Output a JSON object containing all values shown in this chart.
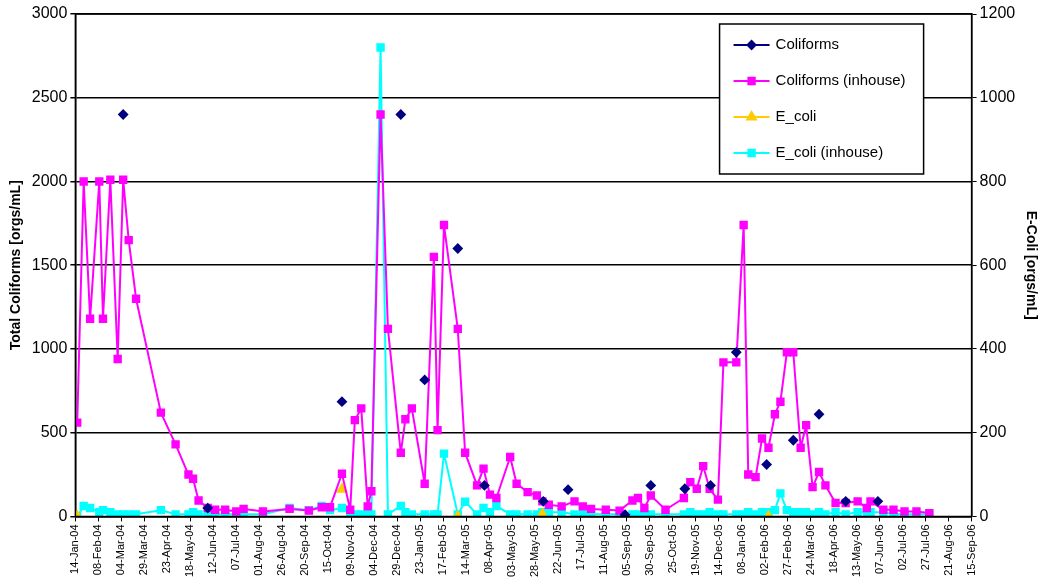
{
  "chart_data": {
    "type": "line",
    "ylabel": "Total Coliforms [orgs/mL]",
    "y2label": "E-Coli [orgs/mL]",
    "xlim": [
      "2004-01-14",
      "2006-09-15"
    ],
    "xticks": [
      {
        "value": "2004-01-14",
        "label": "14-Jan-04"
      },
      {
        "value": "2004-02-08",
        "label": "08-Feb-04"
      },
      {
        "value": "2004-03-04",
        "label": "04-Mar-04"
      },
      {
        "value": "2004-03-29",
        "label": "29-Mar-04"
      },
      {
        "value": "2004-04-23",
        "label": "23-Apr-04"
      },
      {
        "value": "2004-05-18",
        "label": "18-May-04"
      },
      {
        "value": "2004-06-12",
        "label": "12-Jun-04"
      },
      {
        "value": "2004-07-07",
        "label": "07-Jul-04"
      },
      {
        "value": "2004-08-01",
        "label": "01-Aug-04"
      },
      {
        "value": "2004-08-26",
        "label": "26-Aug-04"
      },
      {
        "value": "2004-09-20",
        "label": "20-Sep-04"
      },
      {
        "value": "2004-10-15",
        "label": "15-Oct-04"
      },
      {
        "value": "2004-11-09",
        "label": "09-Nov-04"
      },
      {
        "value": "2004-12-04",
        "label": "04-Dec-04"
      },
      {
        "value": "2004-12-29",
        "label": "29-Dec-04"
      },
      {
        "value": "2005-01-23",
        "label": "23-Jan-05"
      },
      {
        "value": "2005-02-17",
        "label": "17-Feb-05"
      },
      {
        "value": "2005-03-14",
        "label": "14-Mar-05"
      },
      {
        "value": "2005-04-08",
        "label": "08-Apr-05"
      },
      {
        "value": "2005-05-03",
        "label": "03-May-05"
      },
      {
        "value": "2005-05-28",
        "label": "28-May-05"
      },
      {
        "value": "2005-06-22",
        "label": "22-Jun-05"
      },
      {
        "value": "2005-07-17",
        "label": "17-Jul-05"
      },
      {
        "value": "2005-08-11",
        "label": "11-Aug-05"
      },
      {
        "value": "2005-09-05",
        "label": "05-Sep-05"
      },
      {
        "value": "2005-09-30",
        "label": "30-Sep-05"
      },
      {
        "value": "2005-10-25",
        "label": "25-Oct-05"
      },
      {
        "value": "2005-11-19",
        "label": "19-Nov-05"
      },
      {
        "value": "2005-12-14",
        "label": "14-Dec-05"
      },
      {
        "value": "2006-01-08",
        "label": "08-Jan-06"
      },
      {
        "value": "2006-02-02",
        "label": "02-Feb-06"
      },
      {
        "value": "2006-02-27",
        "label": "27-Feb-06"
      },
      {
        "value": "2006-03-24",
        "label": "24-Mar-06"
      },
      {
        "value": "2006-04-18",
        "label": "18-Apr-06"
      },
      {
        "value": "2006-05-13",
        "label": "13-May-06"
      },
      {
        "value": "2006-06-07",
        "label": "07-Jun-06"
      },
      {
        "value": "2006-07-02",
        "label": "02-Jul-06"
      },
      {
        "value": "2006-07-27",
        "label": "27-Jul-06"
      },
      {
        "value": "2006-08-21",
        "label": "21-Aug-06"
      },
      {
        "value": "2006-09-15",
        "label": "15-Sep-06"
      }
    ],
    "ylim": [
      0,
      3000
    ],
    "yticks": [
      0,
      500,
      1000,
      1500,
      2000,
      2500,
      3000
    ],
    "y2lim": [
      0,
      1200
    ],
    "y2ticks": [
      0,
      200,
      400,
      600,
      800,
      1000,
      1200
    ],
    "grid": "y",
    "legend": "top right",
    "series": [
      {
        "name": "Coliforms",
        "type": "scatter",
        "marker": "diamond",
        "color": "#000080",
        "x": [
          "2004-03-06",
          "2004-06-06",
          "2004-10-30",
          "2005-01-02",
          "2005-01-28",
          "2005-03-05",
          "2005-04-03",
          "2005-06-06",
          "2005-07-03",
          "2005-09-03",
          "2005-10-01",
          "2005-11-07",
          "2005-12-05",
          "2006-01-02",
          "2006-02-04",
          "2006-03-05",
          "2006-04-02",
          "2006-05-01",
          "2006-06-05"
        ],
        "values": [
          2400,
          50,
          685,
          2400,
          815,
          1600,
          185,
          90,
          160,
          10,
          185,
          165,
          185,
          980,
          310,
          455,
          610,
          90,
          90
        ]
      },
      {
        "name": "Coliforms (inhouse)",
        "marker": "square",
        "color": "#ff00ff",
        "x": [
          "2004-01-16",
          "2004-01-23",
          "2004-01-30",
          "2004-02-09",
          "2004-02-13",
          "2004-02-21",
          "2004-02-29",
          "2004-03-06",
          "2004-03-12",
          "2004-03-20",
          "2004-04-16",
          "2004-05-02",
          "2004-05-16",
          "2004-05-21",
          "2004-05-27",
          "2004-06-06",
          "2004-06-14",
          "2004-06-25",
          "2004-07-07",
          "2004-07-15",
          "2004-08-05",
          "2004-09-03",
          "2004-09-24",
          "2004-10-08",
          "2004-10-17",
          "2004-10-30",
          "2004-11-08",
          "2004-11-13",
          "2004-11-20",
          "2004-11-27",
          "2004-12-01",
          "2004-12-11",
          "2004-12-19",
          "2005-01-02",
          "2005-01-07",
          "2005-01-14",
          "2005-01-28",
          "2005-02-07",
          "2005-02-11",
          "2005-02-18",
          "2005-03-05",
          "2005-03-13",
          "2005-03-26",
          "2005-04-02",
          "2005-04-09",
          "2005-04-16",
          "2005-05-01",
          "2005-05-08",
          "2005-05-20",
          "2005-05-30",
          "2005-06-05",
          "2005-06-12",
          "2005-06-26",
          "2005-07-10",
          "2005-07-19",
          "2005-07-28",
          "2005-08-13",
          "2005-08-28",
          "2005-09-11",
          "2005-09-17",
          "2005-09-24",
          "2005-10-01",
          "2005-10-17",
          "2005-11-06",
          "2005-11-13",
          "2005-11-20",
          "2005-11-27",
          "2005-12-04",
          "2005-12-13",
          "2005-12-19",
          "2006-01-02",
          "2006-01-10",
          "2006-01-15",
          "2006-01-23",
          "2006-01-30",
          "2006-02-06",
          "2006-02-13",
          "2006-02-19",
          "2006-02-26",
          "2006-03-05",
          "2006-03-13",
          "2006-03-19",
          "2006-03-26",
          "2006-04-02",
          "2006-04-09",
          "2006-04-20",
          "2006-05-01",
          "2006-05-14",
          "2006-05-24",
          "2006-05-28",
          "2006-06-11",
          "2006-06-22",
          "2006-07-04",
          "2006-07-17",
          "2006-07-31"
        ],
        "values": [
          560,
          2000,
          1180,
          2000,
          1180,
          2010,
          940,
          2010,
          1650,
          1300,
          620,
          430,
          250,
          225,
          95,
          50,
          40,
          40,
          30,
          45,
          30,
          45,
          35,
          55,
          55,
          255,
          40,
          575,
          645,
          60,
          150,
          2400,
          1120,
          380,
          580,
          645,
          195,
          1550,
          515,
          1740,
          1120,
          380,
          185,
          285,
          130,
          110,
          355,
          195,
          145,
          125,
          90,
          70,
          60,
          90,
          60,
          45,
          40,
          35,
          95,
          110,
          50,
          125,
          40,
          110,
          205,
          165,
          300,
          165,
          100,
          920,
          920,
          1740,
          250,
          235,
          465,
          410,
          610,
          685,
          980,
          980,
          410,
          545,
          175,
          265,
          185,
          80,
          80,
          90,
          50,
          90,
          40,
          40,
          30,
          30,
          20
        ]
      },
      {
        "name": "E_coli",
        "type": "scatter",
        "marker": "triangle",
        "color": "#ffcc00",
        "axis": "y2",
        "x": [
          "2004-01-16",
          "2004-10-30",
          "2005-03-05",
          "2005-06-05",
          "2006-02-06"
        ],
        "values": [
          0,
          65,
          0,
          5,
          0
        ]
      },
      {
        "name": "E_coli (inhouse)",
        "marker": "square",
        "color": "#00ffff",
        "axis": "y2",
        "x": [
          "2004-01-16",
          "2004-01-23",
          "2004-01-30",
          "2004-02-09",
          "2004-02-13",
          "2004-02-21",
          "2004-02-29",
          "2004-03-06",
          "2004-03-12",
          "2004-03-20",
          "2004-04-16",
          "2004-05-02",
          "2004-05-16",
          "2004-05-21",
          "2004-05-27",
          "2004-06-06",
          "2004-06-14",
          "2004-06-25",
          "2004-07-07",
          "2004-07-15",
          "2004-08-05",
          "2004-09-03",
          "2004-09-24",
          "2004-10-08",
          "2004-10-17",
          "2004-10-30",
          "2004-11-08",
          "2004-11-13",
          "2004-11-20",
          "2004-11-27",
          "2004-12-01",
          "2004-12-11",
          "2004-12-19",
          "2005-01-02",
          "2005-01-07",
          "2005-01-14",
          "2005-01-28",
          "2005-02-07",
          "2005-02-11",
          "2005-02-18",
          "2005-03-05",
          "2005-03-13",
          "2005-03-26",
          "2005-04-02",
          "2005-04-09",
          "2005-04-16",
          "2005-05-01",
          "2005-05-08",
          "2005-05-20",
          "2005-05-30",
          "2005-06-05",
          "2005-06-12",
          "2005-06-26",
          "2005-07-10",
          "2005-07-19",
          "2005-07-28",
          "2005-08-13",
          "2005-08-28",
          "2005-09-11",
          "2005-09-17",
          "2005-09-24",
          "2005-10-01",
          "2005-10-17",
          "2005-11-06",
          "2005-11-13",
          "2005-11-20",
          "2005-11-27",
          "2005-12-04",
          "2005-12-13",
          "2005-12-19",
          "2006-01-02",
          "2006-01-10",
          "2006-01-15",
          "2006-01-23",
          "2006-01-30",
          "2006-02-06",
          "2006-02-13",
          "2006-02-19",
          "2006-02-26",
          "2006-03-05",
          "2006-03-13",
          "2006-03-19",
          "2006-03-26",
          "2006-04-02",
          "2006-04-09",
          "2006-04-20",
          "2006-05-01",
          "2006-05-14",
          "2006-05-24",
          "2006-05-28",
          "2006-06-11",
          "2006-06-22",
          "2006-07-04",
          "2006-07-17",
          "2006-07-31"
        ],
        "values": [
          0,
          25,
          20,
          10,
          15,
          10,
          5,
          5,
          5,
          5,
          15,
          5,
          5,
          10,
          5,
          5,
          5,
          5,
          5,
          5,
          5,
          20,
          15,
          25,
          15,
          20,
          5,
          5,
          5,
          5,
          5,
          1120,
          5,
          25,
          10,
          5,
          5,
          5,
          5,
          150,
          5,
          35,
          5,
          20,
          10,
          25,
          5,
          5,
          5,
          5,
          10,
          10,
          10,
          5,
          5,
          5,
          5,
          5,
          5,
          5,
          5,
          5,
          5,
          5,
          10,
          5,
          5,
          10,
          5,
          5,
          5,
          5,
          10,
          5,
          10,
          10,
          15,
          55,
          15,
          10,
          10,
          10,
          5,
          10,
          5,
          10,
          5,
          10,
          10,
          10,
          10,
          5,
          5,
          5,
          5
        ]
      }
    ]
  }
}
